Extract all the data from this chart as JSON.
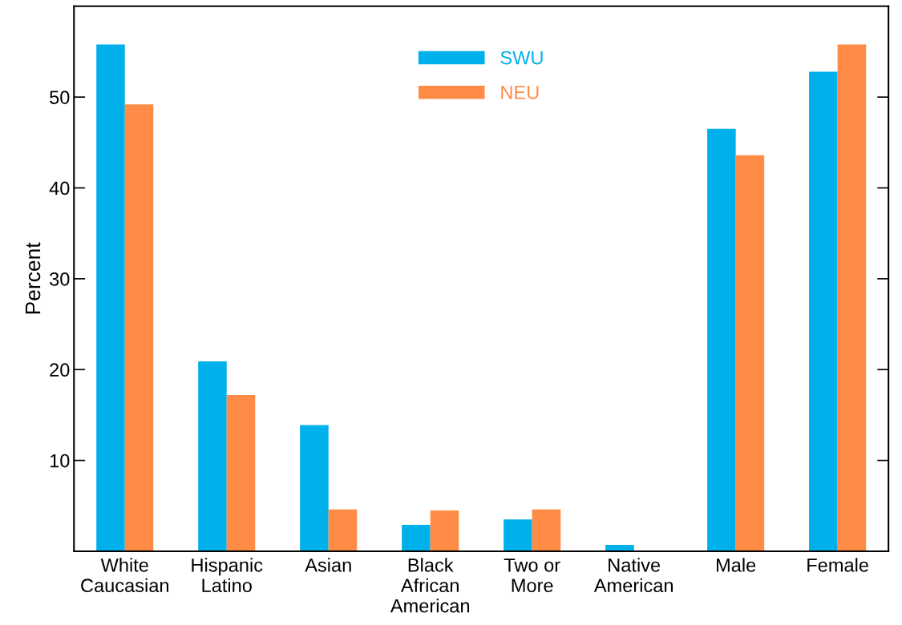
{
  "chart_data": {
    "type": "bar",
    "ylabel": "Percent",
    "categories": [
      "White\nCaucasian",
      "Hispanic\nLatino",
      "Asian",
      "Black\nAfrican\nAmerican",
      "Two or\nMore",
      "Native\nAmerican",
      "Male",
      "Female"
    ],
    "series": [
      {
        "name": "SWU",
        "color": "#00b0ea",
        "values": [
          55.8,
          20.9,
          13.9,
          2.9,
          3.5,
          0.7,
          46.5,
          52.8
        ]
      },
      {
        "name": "NEU",
        "color": "#ff8c46",
        "values": [
          49.2,
          17.2,
          4.6,
          4.5,
          4.6,
          0,
          43.6,
          55.8
        ]
      }
    ],
    "ylim": [
      0,
      60
    ],
    "yticks": [
      10,
      20,
      30,
      40,
      50
    ],
    "grid": false,
    "legend": "top"
  }
}
